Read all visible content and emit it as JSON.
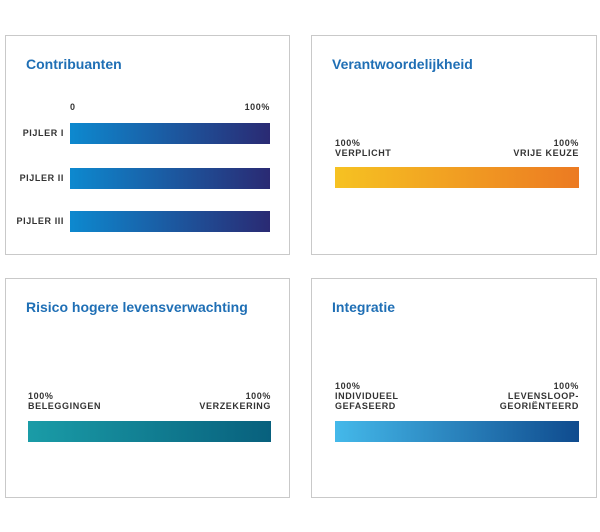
{
  "panels": [
    {
      "title": "Contribuanten",
      "scale": {
        "min_label": "0",
        "max_label": "100%"
      },
      "rows": [
        {
          "label": "PIJLER I",
          "value": 1.0
        },
        {
          "label": "PIJLER II",
          "value": 1.0
        },
        {
          "label": "PIJLER III",
          "value": 1.0
        }
      ],
      "gradient": [
        "#0d89cf",
        "#2a2a73"
      ]
    },
    {
      "title": "Verantwoordelijkheid",
      "left": {
        "pct": "100%",
        "label": "VERPLICHT"
      },
      "right": {
        "pct": "100%",
        "label": "VRIJE KEUZE"
      },
      "gradient": [
        "#f6c222",
        "#ec7a22"
      ]
    },
    {
      "title": "Risico hogere levensverwachting",
      "left": {
        "pct": "100%",
        "label": "BELEGGINGEN"
      },
      "right": {
        "pct": "100%",
        "label": "VERZEKERING"
      },
      "gradient": [
        "#1a9ca7",
        "#08607d"
      ]
    },
    {
      "title": "Integratie",
      "left": {
        "pct": "100%",
        "line1": "INDIVIDUEEL",
        "line2": "GEFASEERD"
      },
      "right": {
        "pct": "100%",
        "line1": "LEVENSLOOP-",
        "line2": "GEORIËNTEERD"
      },
      "gradient": [
        "#44b9ea",
        "#0f4b8e"
      ]
    }
  ]
}
